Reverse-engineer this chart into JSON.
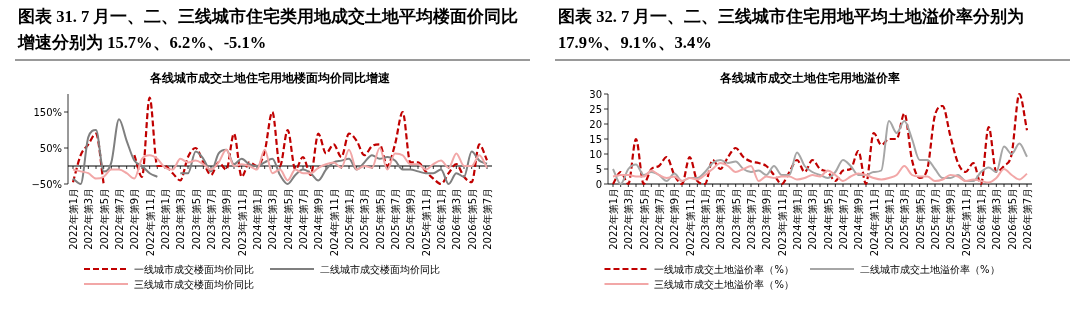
{
  "chart_data": [
    {
      "type": "line",
      "title": "图表 31. 7 月一、二、三线城市住宅类用地成交土地平均楼面价同比增速分别为 15.7%、6.2%、-5.1%",
      "subtitle": "各线城市成交土地住宅用地楼面均价同比增速",
      "categories": [
        "2022年第1月",
        null,
        "2022年第3月",
        null,
        "2022年第5月",
        null,
        "2022年第7月",
        null,
        "2022年第9月",
        null,
        "2022年第11月",
        null,
        "2023年第1月",
        null,
        "2023年第3月",
        null,
        "2023年第5月",
        null,
        "2023年第7月",
        null,
        "2023年第9月",
        null,
        "2023年第11月",
        null,
        "2024年第1月",
        null,
        "2024年第3月",
        null,
        "2024年第5月",
        null,
        "2024年第7月",
        null,
        "2024年第9月",
        null,
        "2024年第11月",
        null,
        "2025年第1月",
        null,
        "2025年第3月",
        null,
        "2025年第5月",
        null,
        "2025年第7月",
        null,
        "2025年第9月",
        null,
        "2025年第11月",
        null,
        "2026年第1月",
        null,
        "2026年第3月",
        null,
        "2026年第5月",
        null,
        "2026年第7月"
      ],
      "series": [
        {
          "name": "一线城市成交楼面均价同比",
          "color": "#c00000",
          "line_style": "dashed",
          "values": [
            -45,
            30,
            60,
            90,
            -50,
            null,
            null,
            null,
            30,
            -30,
            190,
            0,
            0,
            -20,
            -40,
            25,
            50,
            10,
            -25,
            10,
            -10,
            90,
            -30,
            10,
            0,
            40,
            150,
            0,
            100,
            -10,
            25,
            -25,
            90,
            35,
            60,
            25,
            90,
            70,
            30,
            55,
            60,
            0,
            60,
            150,
            10,
            10,
            -15,
            -35,
            -50,
            -20,
            5,
            -30,
            -45,
            60,
            15.7
          ]
        },
        {
          "name": "二线城市成交楼面均价同比",
          "color": "#7f7f7f",
          "line_style": "solid",
          "values": [
            -35,
            -50,
            80,
            100,
            -15,
            10,
            130,
            70,
            15,
            0,
            -20,
            -30,
            null,
            null,
            -20,
            -20,
            40,
            20,
            -15,
            35,
            45,
            5,
            20,
            5,
            0,
            10,
            20,
            -25,
            -50,
            -25,
            -10,
            -20,
            -40,
            -10,
            10,
            15,
            20,
            -10,
            10,
            30,
            20,
            25,
            15,
            -10,
            -10,
            -15,
            -20,
            -20,
            -10,
            -50,
            -20,
            -30,
            40,
            15,
            6.2
          ]
        },
        {
          "name": "三线城市成交楼面均价同比",
          "color": "#f2a7a7",
          "line_style": "solid",
          "values": [
            -10,
            -15,
            -20,
            -35,
            -30,
            -10,
            -10,
            -20,
            -35,
            20,
            30,
            20,
            -5,
            -10,
            20,
            10,
            15,
            5,
            -10,
            10,
            45,
            0,
            5,
            0,
            -10,
            45,
            -20,
            -10,
            -40,
            -10,
            -20,
            -20,
            -5,
            5,
            10,
            -5,
            45,
            -10,
            0,
            -5,
            50,
            -10,
            35,
            30,
            5,
            5,
            -10,
            5,
            15,
            -5,
            35,
            0,
            0,
            30,
            -5.1
          ]
        }
      ],
      "ylim": [
        -50,
        200
      ],
      "yticks": [
        {
          "value": 150,
          "label": "150%"
        },
        {
          "value": 50,
          "label": "50%"
        },
        {
          "value": -50,
          "label": "−50%"
        }
      ],
      "legend": "bottom",
      "grid": false
    },
    {
      "type": "line",
      "title": "图表 32. 7 月一、二、三线城市住宅用地平均土地溢价率分别为 17.9%、9.1%、3.4%",
      "subtitle": "各线城市成交土地住宅用地溢价率",
      "categories": [
        "2022年第1月",
        null,
        "2022年第3月",
        null,
        "2022年第5月",
        null,
        "2022年第7月",
        null,
        "2022年第9月",
        null,
        "2022年第11月",
        null,
        "2023年第1月",
        null,
        "2023年第3月",
        null,
        "2023年第5月",
        null,
        "2023年第7月",
        null,
        "2023年第9月",
        null,
        "2023年第11月",
        null,
        "2024年第1月",
        null,
        "2024年第3月",
        null,
        "2024年第5月",
        null,
        "2024年第7月",
        null,
        "2024年第9月",
        null,
        "2024年第11月",
        null,
        "2025年第1月",
        null,
        "2025年第3月",
        null,
        "2025年第5月",
        null,
        "2025年第7月",
        null,
        "2025年第9月",
        null,
        "2025年第11月",
        null,
        "2026年第1月",
        null,
        "2026年第3月",
        null,
        "2026年第5月",
        null,
        "2026年第7月"
      ],
      "series": [
        {
          "name": "一线城市成交土地溢价率（%）",
          "color": "#c00000",
          "line_style": "dashed",
          "values": [
            0,
            4,
            0,
            15,
            0,
            5,
            6,
            9,
            3,
            0,
            9,
            1,
            0,
            8,
            5,
            9,
            12,
            9,
            7.5,
            7,
            6,
            3,
            0,
            4,
            8,
            4,
            8,
            5,
            4,
            1,
            4.5,
            5,
            11,
            0,
            17,
            13,
            15,
            15,
            23.5,
            8,
            2,
            5,
            23,
            26,
            16,
            7,
            4,
            7,
            0,
            19,
            4,
            6,
            10,
            30,
            17.9
          ]
        },
        {
          "name": "二线城市成交土地溢价率（%）",
          "color": "#a6a6a6",
          "line_style": "solid",
          "values": [
            5,
            0,
            5,
            6.5,
            3,
            4,
            3,
            1,
            3.5,
            1,
            2,
            2,
            4,
            7,
            8,
            7,
            7.5,
            5,
            4,
            4.5,
            3,
            6,
            3,
            3,
            10.5,
            6,
            4,
            3,
            2,
            4,
            8,
            6,
            3,
            3,
            4,
            4.5,
            21,
            17,
            21,
            15,
            8,
            8,
            5,
            2,
            2,
            3,
            1,
            1,
            4,
            5.5,
            4,
            12.5,
            10,
            13.5,
            9.1
          ]
        },
        {
          "name": "三线城市成交土地溢价率（%）",
          "color": "#f2a7a7",
          "line_style": "solid",
          "values": [
            2.5,
            3,
            3,
            2.5,
            2.5,
            4.5,
            3,
            2,
            2.5,
            1,
            2,
            1.5,
            3,
            5,
            7,
            6,
            4,
            5,
            6,
            1,
            2.5,
            2,
            2.5,
            2.5,
            1.5,
            2,
            3,
            2.5,
            4.5,
            3,
            1,
            2.5,
            3.5,
            3,
            2,
            1.5,
            2,
            3,
            6,
            3,
            2.5,
            2.5,
            1,
            1.5,
            3,
            2.5,
            1,
            1.5,
            1,
            0.5,
            2,
            5,
            3,
            1.5,
            3.4
          ]
        }
      ],
      "ylim": [
        0,
        30
      ],
      "yticks": [
        0,
        5,
        10,
        15,
        20,
        25,
        30
      ],
      "legend": "bottom",
      "grid": false
    }
  ]
}
